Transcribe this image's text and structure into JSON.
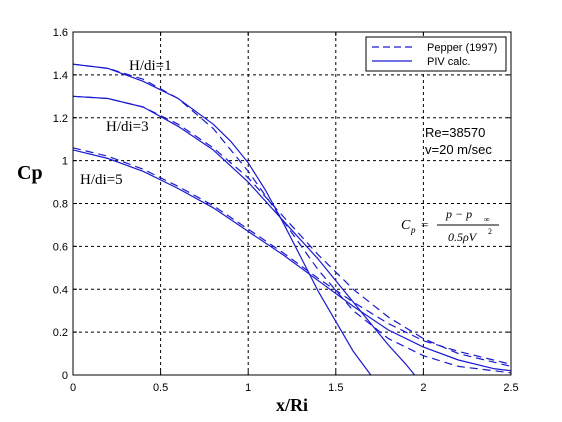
{
  "chart_data": {
    "type": "line",
    "title": "",
    "xlabel": "x/Ri",
    "ylabel": "Cp",
    "xlim": [
      0,
      2.5
    ],
    "ylim": [
      0,
      1.6
    ],
    "x_ticks": [
      "0",
      "0.5",
      "1",
      "1.5",
      "2",
      "2.5"
    ],
    "y_ticks": [
      "0",
      "0.2",
      "0.4",
      "0.6",
      "0.8",
      "1",
      "1.2",
      "1.4",
      "1.6"
    ],
    "grid": true,
    "legend": {
      "position": "top-right",
      "entries": [
        {
          "label": "Pepper (1997)",
          "style": "dashed"
        },
        {
          "label": "PIV calc.",
          "style": "solid"
        }
      ]
    },
    "annotations": {
      "curve_labels": [
        "H/di=1",
        "H/di=3",
        "H/di=5"
      ],
      "re": "Re=38570",
      "v": "v=20 m/sec",
      "formula": {
        "lhs": "C",
        "lhs_sub": "p",
        "num": "p − p",
        "num_sub": "∞",
        "den": "0.5ρV",
        "den_sup": "2"
      }
    },
    "line_color": "#1a1ad0",
    "series": [
      {
        "group": "H/di=1",
        "style": "dashed",
        "x": [
          0,
          0.2,
          0.4,
          0.6,
          0.8,
          1.0,
          1.2,
          1.4,
          1.6,
          1.8,
          2.0,
          2.2,
          2.4,
          2.5
        ],
        "y": [
          1.45,
          1.43,
          1.38,
          1.29,
          1.15,
          0.95,
          0.72,
          0.49,
          0.3,
          0.17,
          0.09,
          0.04,
          0.02,
          0.01
        ]
      },
      {
        "group": "H/di=1",
        "style": "solid",
        "x": [
          0,
          0.2,
          0.4,
          0.6,
          0.8,
          0.9,
          1.0,
          1.1,
          1.2,
          1.3,
          1.4,
          1.5,
          1.6,
          1.7
        ],
        "y": [
          1.45,
          1.43,
          1.37,
          1.29,
          1.17,
          1.09,
          0.99,
          0.86,
          0.71,
          0.55,
          0.39,
          0.25,
          0.11,
          0.0
        ]
      },
      {
        "group": "H/di=3",
        "style": "dashed",
        "x": [
          0,
          0.2,
          0.4,
          0.6,
          0.8,
          1.0,
          1.2,
          1.4,
          1.6,
          1.8,
          2.0,
          2.2,
          2.4,
          2.5
        ],
        "y": [
          1.3,
          1.29,
          1.25,
          1.17,
          1.06,
          0.92,
          0.74,
          0.56,
          0.4,
          0.27,
          0.17,
          0.1,
          0.06,
          0.04
        ]
      },
      {
        "group": "H/di=3",
        "style": "solid",
        "x": [
          0,
          0.2,
          0.4,
          0.6,
          0.8,
          1.0,
          1.2,
          1.4,
          1.5,
          1.6,
          1.7,
          1.8,
          1.9,
          1.95
        ],
        "y": [
          1.3,
          1.29,
          1.25,
          1.16,
          1.05,
          0.9,
          0.72,
          0.54,
          0.44,
          0.34,
          0.24,
          0.14,
          0.05,
          0.0
        ]
      },
      {
        "group": "H/di=5",
        "style": "dashed",
        "x": [
          0,
          0.2,
          0.4,
          0.6,
          0.8,
          1.0,
          1.2,
          1.4,
          1.6,
          1.8,
          2.0,
          2.2,
          2.4,
          2.5
        ],
        "y": [
          1.06,
          1.02,
          0.96,
          0.88,
          0.79,
          0.68,
          0.57,
          0.45,
          0.34,
          0.24,
          0.16,
          0.11,
          0.07,
          0.05
        ]
      },
      {
        "group": "H/di=5",
        "style": "solid",
        "x": [
          0,
          0.2,
          0.4,
          0.6,
          0.8,
          1.0,
          1.2,
          1.4,
          1.6,
          1.8,
          2.0,
          2.2,
          2.4,
          2.5
        ],
        "y": [
          1.05,
          1.01,
          0.95,
          0.87,
          0.78,
          0.67,
          0.56,
          0.44,
          0.32,
          0.21,
          0.13,
          0.07,
          0.03,
          0.02
        ]
      }
    ]
  }
}
